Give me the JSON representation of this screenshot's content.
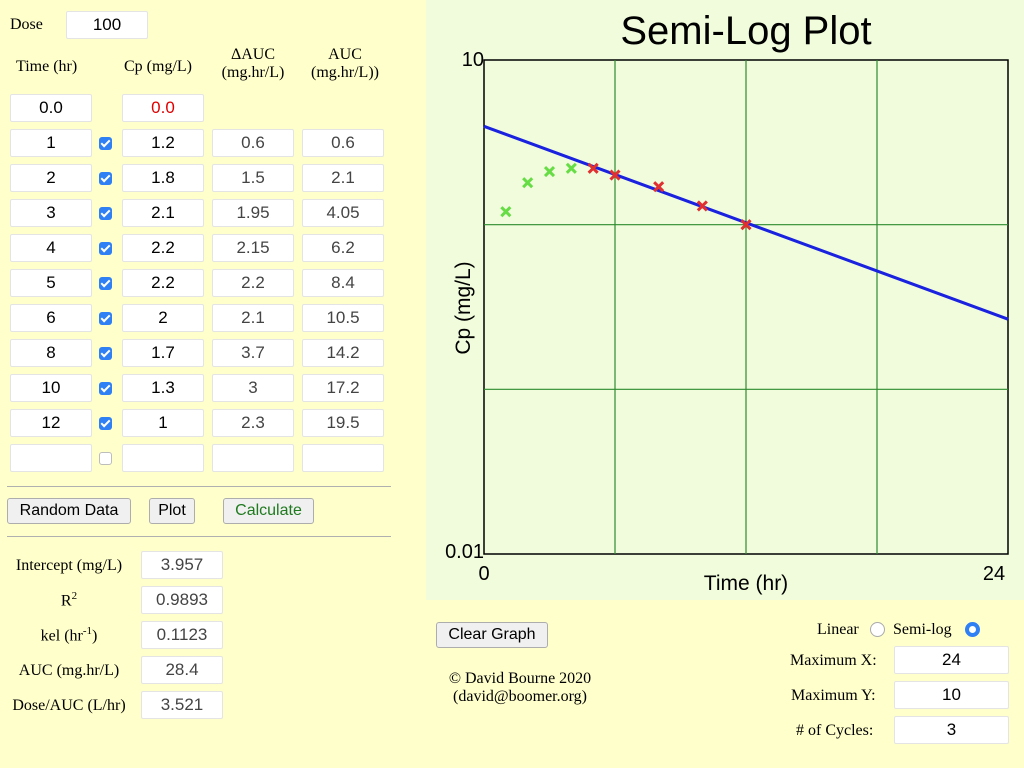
{
  "dose": {
    "label": "Dose",
    "value": "100"
  },
  "table": {
    "headers": {
      "time": "Time (hr)",
      "cp": "Cp (mg/L)",
      "dauc_1": "ΔAUC",
      "dauc_2": "(mg.hr/L)",
      "auc_1": "AUC",
      "auc_2": "(mg.hr/L))"
    },
    "zero_row": {
      "time": "0.0",
      "cp": "0.0"
    },
    "rows": [
      {
        "time": "1",
        "checked": true,
        "cp": "1.2",
        "dauc": "0.6",
        "auc": "0.6"
      },
      {
        "time": "2",
        "checked": true,
        "cp": "1.8",
        "dauc": "1.5",
        "auc": "2.1"
      },
      {
        "time": "3",
        "checked": true,
        "cp": "2.1",
        "dauc": "1.95",
        "auc": "4.05"
      },
      {
        "time": "4",
        "checked": true,
        "cp": "2.2",
        "dauc": "2.15",
        "auc": "6.2"
      },
      {
        "time": "5",
        "checked": true,
        "cp": "2.2",
        "dauc": "2.2",
        "auc": "8.4"
      },
      {
        "time": "6",
        "checked": true,
        "cp": "2",
        "dauc": "2.1",
        "auc": "10.5"
      },
      {
        "time": "8",
        "checked": true,
        "cp": "1.7",
        "dauc": "3.7",
        "auc": "14.2"
      },
      {
        "time": "10",
        "checked": true,
        "cp": "1.3",
        "dauc": "3",
        "auc": "17.2"
      },
      {
        "time": "12",
        "checked": true,
        "cp": "1",
        "dauc": "2.3",
        "auc": "19.5"
      },
      {
        "time": "",
        "checked": false,
        "cp": "",
        "dauc": "",
        "auc": ""
      }
    ]
  },
  "buttons": {
    "random": "Random Data",
    "plot": "Plot",
    "calculate": "Calculate",
    "clear": "Clear Graph"
  },
  "results": {
    "intercept": {
      "label": "Intercept (mg/L)",
      "value": "3.957"
    },
    "r2": {
      "label": "R",
      "sup": "2",
      "value": "0.9893"
    },
    "kel": {
      "label": "kel (hr",
      "sup": "-1",
      "label_end": ")",
      "value": "0.1123"
    },
    "auc": {
      "label": "AUC (mg.hr/L)",
      "value": "28.4"
    },
    "dose_auc": {
      "label": "Dose/AUC (L/hr)",
      "value": "3.521"
    }
  },
  "credit": {
    "line1": "© David Bourne 2020",
    "line2": "(david@boomer.org)"
  },
  "options": {
    "linear_label": "Linear",
    "semilog_label": "Semi-log",
    "scale": "semi-log",
    "max_x_label": "Maximum X:",
    "max_x": "24",
    "max_y_label": "Maximum Y:",
    "max_y": "10",
    "cycles_label": "# of Cycles:",
    "cycles": "3"
  },
  "chart_data": {
    "type": "scatter",
    "title": "Semi-Log Plot",
    "xlabel": "Time (hr)",
    "ylabel": "Cp (mg/L)",
    "xlim": [
      0,
      24
    ],
    "ylim": [
      0.01,
      10
    ],
    "log_y": true,
    "x_tick_labels": [
      "0",
      "24"
    ],
    "y_tick_labels": [
      "10",
      "0.01"
    ],
    "grid": true,
    "series": [
      {
        "x": [
          1,
          2,
          3,
          4
        ],
        "y": [
          1.2,
          1.8,
          2.1,
          2.2
        ],
        "color": "#66dd44"
      },
      {
        "x": [
          5,
          6,
          8,
          10,
          12
        ],
        "y": [
          2.2,
          2.0,
          1.7,
          1.3,
          1.0
        ],
        "color": "#e03030"
      }
    ],
    "fit_line": {
      "intercept": 3.957,
      "slope_log10": -0.0488,
      "color": "#1a22e0"
    }
  }
}
